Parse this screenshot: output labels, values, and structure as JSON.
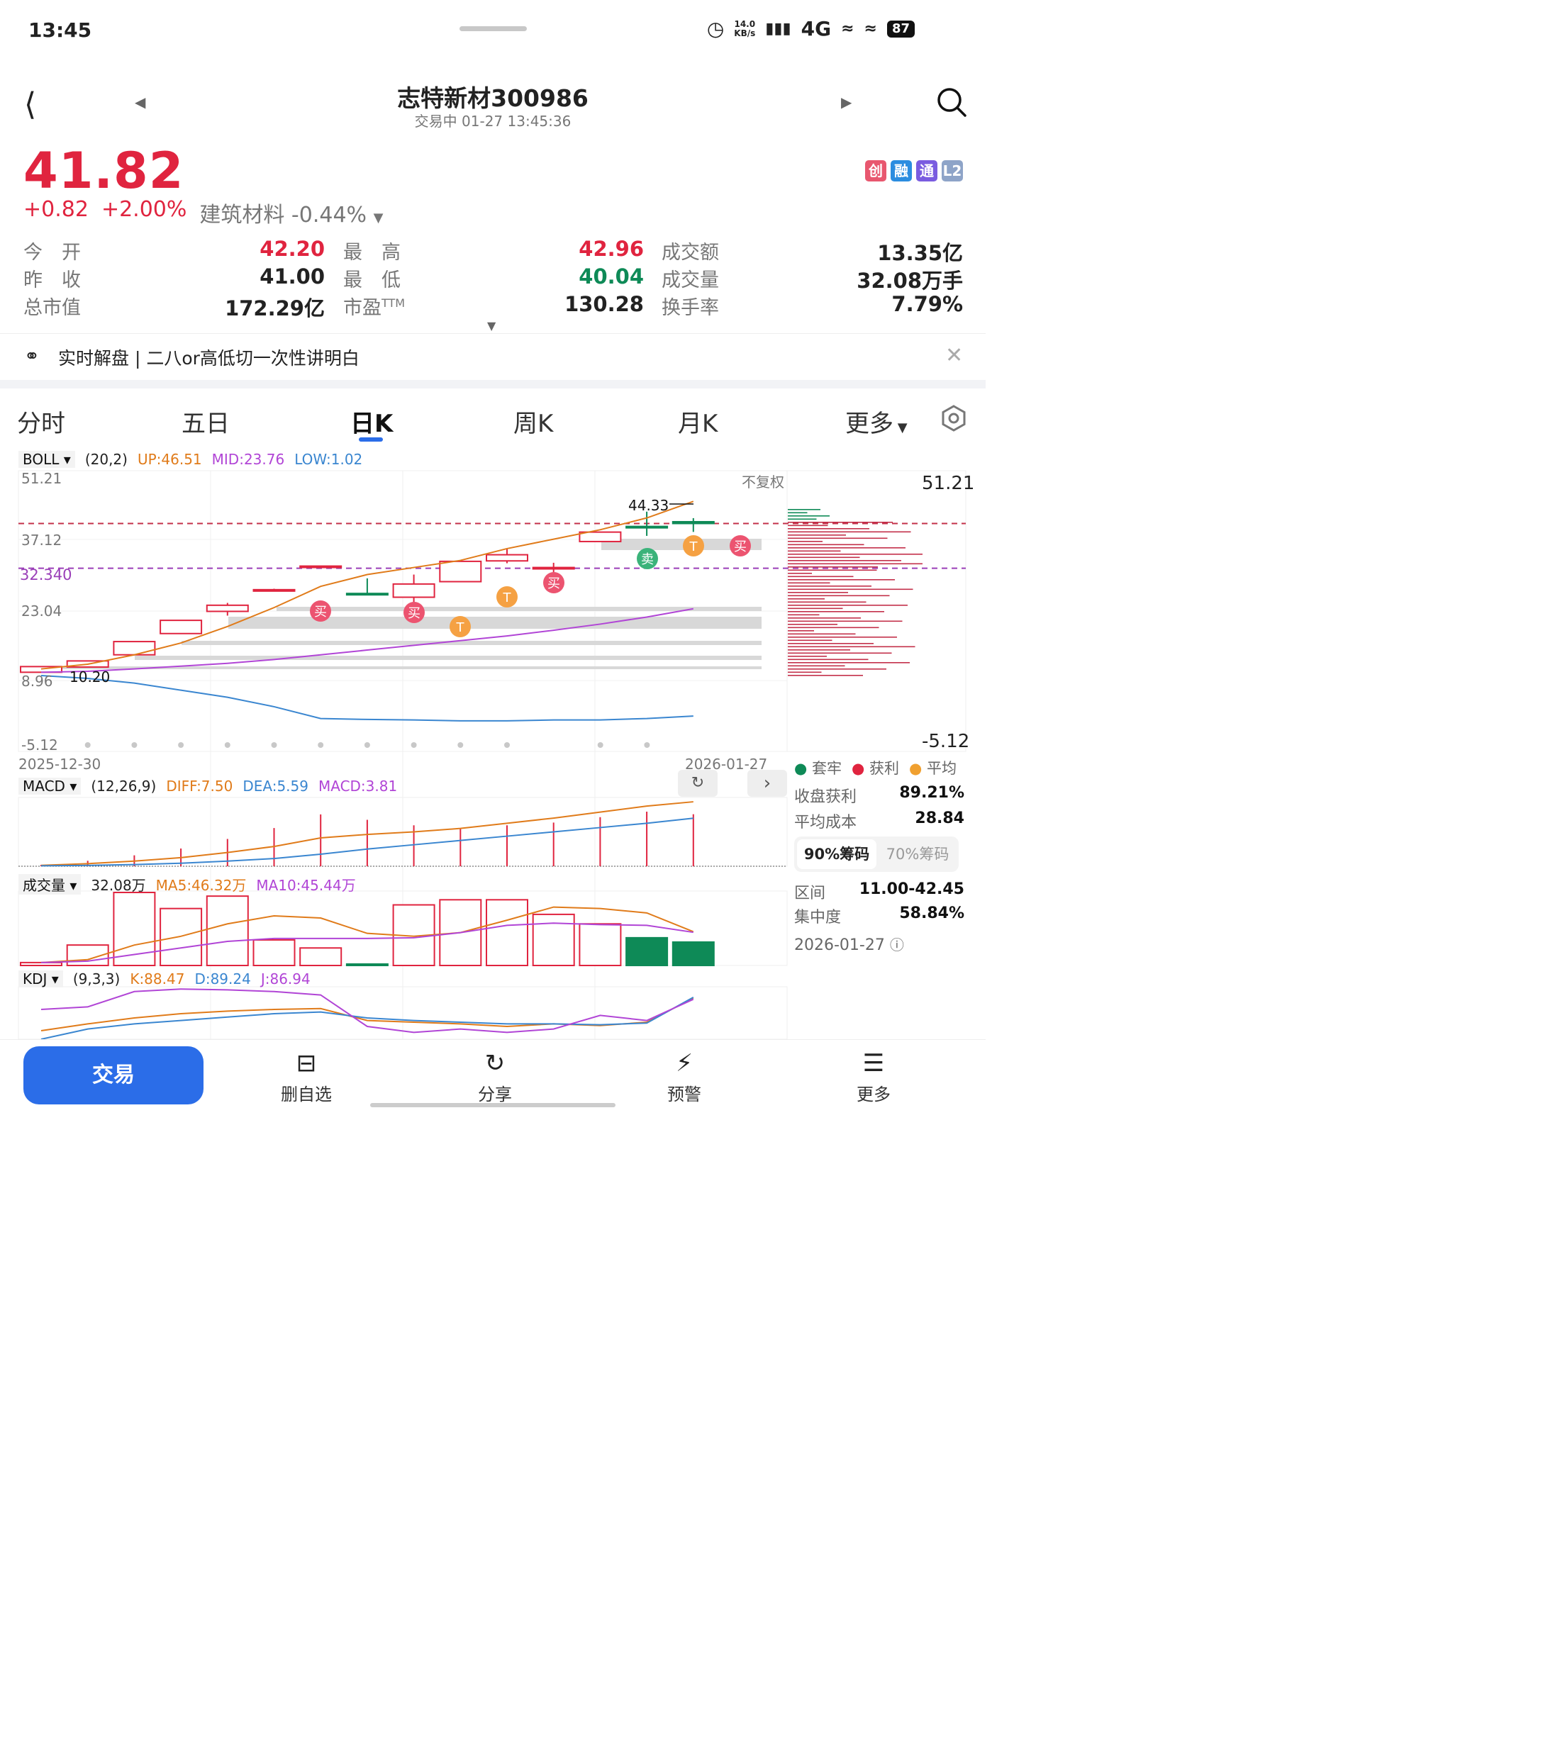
{
  "status": {
    "time": "13:45",
    "net_speed_value": "14.0",
    "net_speed_unit": "KB/s",
    "network": "4G",
    "battery": "87"
  },
  "header": {
    "title": "志特新材300986",
    "subtitle": "交易中 01-27 13:45:36"
  },
  "quote": {
    "price": "41.82",
    "change": "+0.82",
    "change_pct": "+2.00%",
    "sector": "建筑材料 -0.44%",
    "badges": [
      "创",
      "融",
      "通",
      "L2"
    ],
    "open_label": "今　开",
    "open": "42.20",
    "high_label": "最　高",
    "high": "42.96",
    "amount_label": "成交额",
    "amount": "13.35亿",
    "prev_close_label": "昨　收",
    "prev_close": "41.00",
    "low_label": "最　低",
    "low": "40.04",
    "volume_label": "成交量",
    "volume": "32.08万手",
    "mktcap_label": "总市值",
    "mktcap": "172.29亿",
    "pe_label": "市盈",
    "pe_sup": "TTM",
    "pe": "130.28",
    "turnover_label": "换手率",
    "turnover": "7.79%"
  },
  "banner": {
    "text": "实时解盘 | 二八or高低切一次性讲明白"
  },
  "tabs": {
    "t1": "分时",
    "t2": "五日",
    "t3": "日K",
    "t4": "周K",
    "t5": "月K",
    "t6": "更多"
  },
  "boll": {
    "name": "BOLL",
    "params": "(20,2)",
    "up": "UP:46.51",
    "mid": "MID:23.76",
    "low": "LOW:1.02",
    "y_labels": [
      "51.21",
      "37.12",
      "23.04",
      "8.96",
      "-5.12"
    ],
    "price_line_label": "32.340",
    "fq": "不复权",
    "right_top": "51.21",
    "right_bottom": "-5.12",
    "max_label": "44.33",
    "min_label": "10.20",
    "date_start": "2025-12-30",
    "date_end": "2026-01-27"
  },
  "macd": {
    "name": "MACD",
    "params": "(12,26,9)",
    "diff": "DIFF:7.50",
    "dea": "DEA:5.59",
    "macd": "MACD:3.81"
  },
  "vol": {
    "name": "成交量",
    "value": "32.08万",
    "ma5": "MA5:46.32万",
    "ma10": "MA10:45.44万"
  },
  "kdj": {
    "name": "KDJ",
    "params": "(9,3,3)",
    "k": "K:88.47",
    "d": "D:89.24",
    "j": "J:86.94"
  },
  "signals": {
    "buy": "买",
    "sell": "卖",
    "t": "T"
  },
  "chips": {
    "legend_trapped": "套牢",
    "legend_profit": "获利",
    "legend_avg": "平均",
    "profit_label": "收盘获利",
    "profit_value": "89.21%",
    "avg_cost_label": "平均成本",
    "avg_cost_value": "28.84",
    "tab_90": "90%筹码",
    "tab_70": "70%筹码",
    "range_label": "区间",
    "range_value": "11.00-42.45",
    "conc_label": "集中度",
    "conc_value": "58.84%",
    "date": "2026-01-27"
  },
  "bottom": {
    "trade": "交易",
    "remove_watch": "删自选",
    "share": "分享",
    "alert": "预警",
    "more": "更多"
  },
  "colors": {
    "up": "#e0243f",
    "down": "#0e8a57",
    "accent": "#2b6de8",
    "boll_up": "#e07b1a",
    "boll_mid": "#b145d6",
    "boll_low": "#3a86d0"
  },
  "chart_data": {
    "type": "candlestick",
    "y_range": [
      -5.12,
      51.21
    ],
    "candles": [
      {
        "o": 10.3,
        "c": 11.5,
        "h": 11.5,
        "l": 10.2
      },
      {
        "o": 11.4,
        "c": 12.7,
        "h": 12.7,
        "l": 11.4
      },
      {
        "o": 14.0,
        "c": 16.8,
        "h": 16.8,
        "l": 14.0
      },
      {
        "o": 18.5,
        "c": 21.3,
        "h": 21.3,
        "l": 18.5
      },
      {
        "o": 23.2,
        "c": 24.5,
        "h": 25.0,
        "l": 22.3
      },
      {
        "o": 27.5,
        "c": 27.8,
        "h": 28.0,
        "l": 27.5
      },
      {
        "o": 32.5,
        "c": 32.8,
        "h": 32.8,
        "l": 32.5
      },
      {
        "o": 27.0,
        "c": 26.8,
        "h": 30.2,
        "l": 26.8
      },
      {
        "o": 26.2,
        "c": 29.0,
        "h": 31.0,
        "l": 23.5
      },
      {
        "o": 29.5,
        "c": 33.8,
        "h": 33.8,
        "l": 29.5
      },
      {
        "o": 33.9,
        "c": 35.2,
        "h": 36.5,
        "l": 33.4
      },
      {
        "o": 32.2,
        "c": 32.5,
        "h": 33.5,
        "l": 31.3
      },
      {
        "o": 38.0,
        "c": 40.0,
        "h": 40.0,
        "l": 38.0
      },
      {
        "o": 41.2,
        "c": 40.9,
        "h": 44.33,
        "l": 39.2
      },
      {
        "o": 42.2,
        "c": 41.82,
        "h": 42.96,
        "l": 40.04
      }
    ],
    "boll_up": [
      11,
      12,
      14,
      16.5,
      20,
      24,
      28.5,
      31,
      32.5,
      34,
      36.5,
      38.5,
      40.5,
      43,
      46.51
    ],
    "boll_mid": [
      10.3,
      10.5,
      11,
      11.6,
      12.2,
      13,
      14,
      15,
      16,
      17,
      18,
      19.2,
      20.5,
      22,
      23.76
    ],
    "boll_low": [
      9.6,
      9.0,
      8.0,
      6.5,
      5.0,
      3.0,
      0.5,
      0.3,
      0.2,
      0.0,
      0.0,
      0.2,
      0.2,
      0.5,
      1.02
    ],
    "volume": [
      4,
      28,
      100,
      78,
      95,
      35,
      24,
      2,
      83,
      90,
      90,
      70,
      57,
      38,
      32.08
    ],
    "vol_ma5": [
      4,
      8,
      28,
      40,
      57,
      68,
      65,
      44,
      40,
      45,
      62,
      80,
      78,
      72,
      46.32
    ],
    "vol_ma10": [
      4,
      6,
      15,
      24,
      33,
      37,
      37,
      37,
      38,
      45,
      55,
      58,
      56,
      55,
      45.44
    ],
    "diff": [
      0.1,
      0.3,
      0.6,
      1.0,
      1.6,
      2.3,
      3.3,
      3.7,
      4.0,
      4.4,
      5.0,
      5.6,
      6.3,
      7.0,
      7.5
    ],
    "dea": [
      0.05,
      0.1,
      0.2,
      0.35,
      0.6,
      0.9,
      1.4,
      2.0,
      2.5,
      3.0,
      3.5,
      4.0,
      4.5,
      5.0,
      5.59
    ],
    "macd_hist": [
      0.1,
      0.4,
      0.8,
      1.3,
      2.0,
      2.8,
      3.8,
      3.4,
      3.0,
      2.8,
      3.0,
      3.2,
      3.6,
      4.0,
      3.81
    ],
    "kdj_k": [
      50,
      58,
      65,
      70,
      73,
      75,
      76,
      62,
      60,
      58,
      55,
      58,
      56,
      60,
      88.47
    ],
    "kdj_d": [
      40,
      52,
      58,
      62,
      66,
      70,
      72,
      65,
      62,
      60,
      58,
      58,
      57,
      59,
      89.24
    ],
    "kdj_j": [
      75,
      78,
      96,
      99,
      98,
      96,
      92,
      55,
      48,
      52,
      48,
      52,
      68,
      62,
      86.94
    ],
    "current_price": 41.82,
    "price_ref_line": 32.34
  }
}
